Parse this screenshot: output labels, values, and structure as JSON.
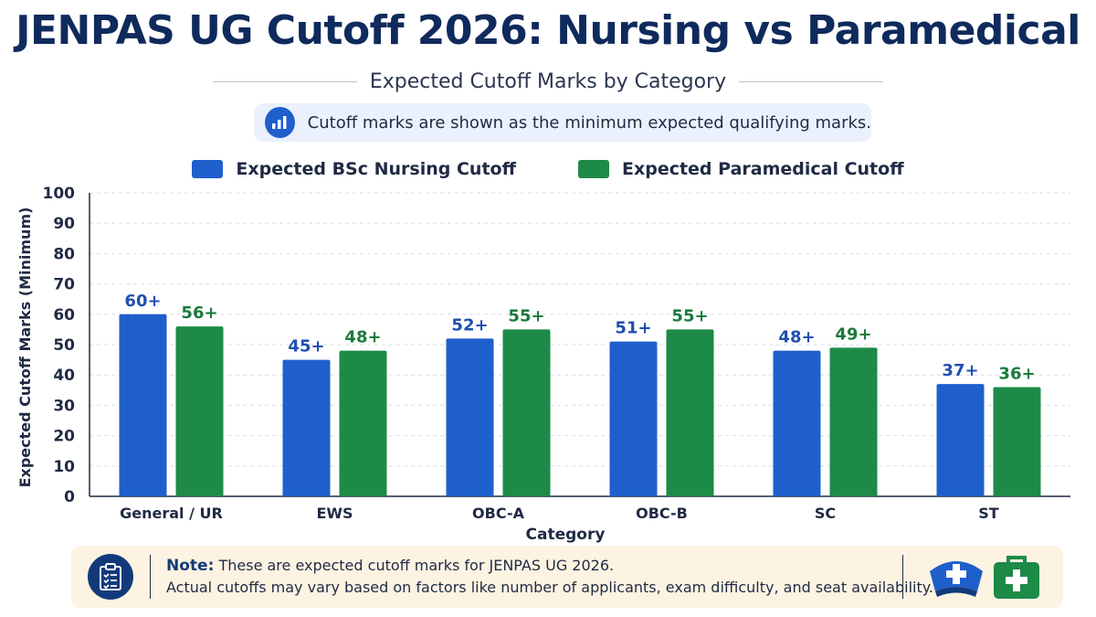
{
  "title": "JENPAS UG Cutoff 2026: Nursing vs Paramedical",
  "subtitle": "Expected Cutoff Marks by Category",
  "info": {
    "text": "Cutoff marks are shown as the minimum expected qualifying marks.",
    "icon": "bar-chart-icon"
  },
  "colors": {
    "nursing": "#1f5fcc",
    "paramedical": "#1e8a47",
    "title": "#0f2a5c",
    "note_bg": "#fdf3e2"
  },
  "note": {
    "label": "Note:",
    "line1": "These are expected cutoff marks for JENPAS UG 2026.",
    "line2": "Actual cutoffs may vary based on factors like number of applicants, exam difficulty, and seat availability.",
    "icons": [
      "clipboard-checklist-icon",
      "nurse-cap-icon",
      "first-aid-kit-icon"
    ]
  },
  "chart_data": {
    "type": "bar",
    "categories": [
      "General / UR",
      "EWS",
      "OBC-A",
      "OBC-B",
      "SC",
      "ST"
    ],
    "series": [
      {
        "name": "Expected BSc Nursing Cutoff",
        "values": [
          60,
          45,
          52,
          51,
          48,
          37
        ],
        "labels": [
          "60+",
          "45+",
          "52+",
          "51+",
          "48+",
          "37+"
        ]
      },
      {
        "name": "Expected Paramedical Cutoff",
        "values": [
          56,
          48,
          55,
          55,
          49,
          36
        ],
        "labels": [
          "56+",
          "48+",
          "55+",
          "55+",
          "49+",
          "36+"
        ]
      }
    ],
    "xlabel": "Category",
    "ylabel": "Expected Cutoff Marks (Minimum)",
    "ylim": [
      0,
      100
    ],
    "yticks": [
      0,
      10,
      20,
      30,
      40,
      50,
      60,
      70,
      80,
      90,
      100
    ],
    "grid": true,
    "legend": "top-center"
  }
}
